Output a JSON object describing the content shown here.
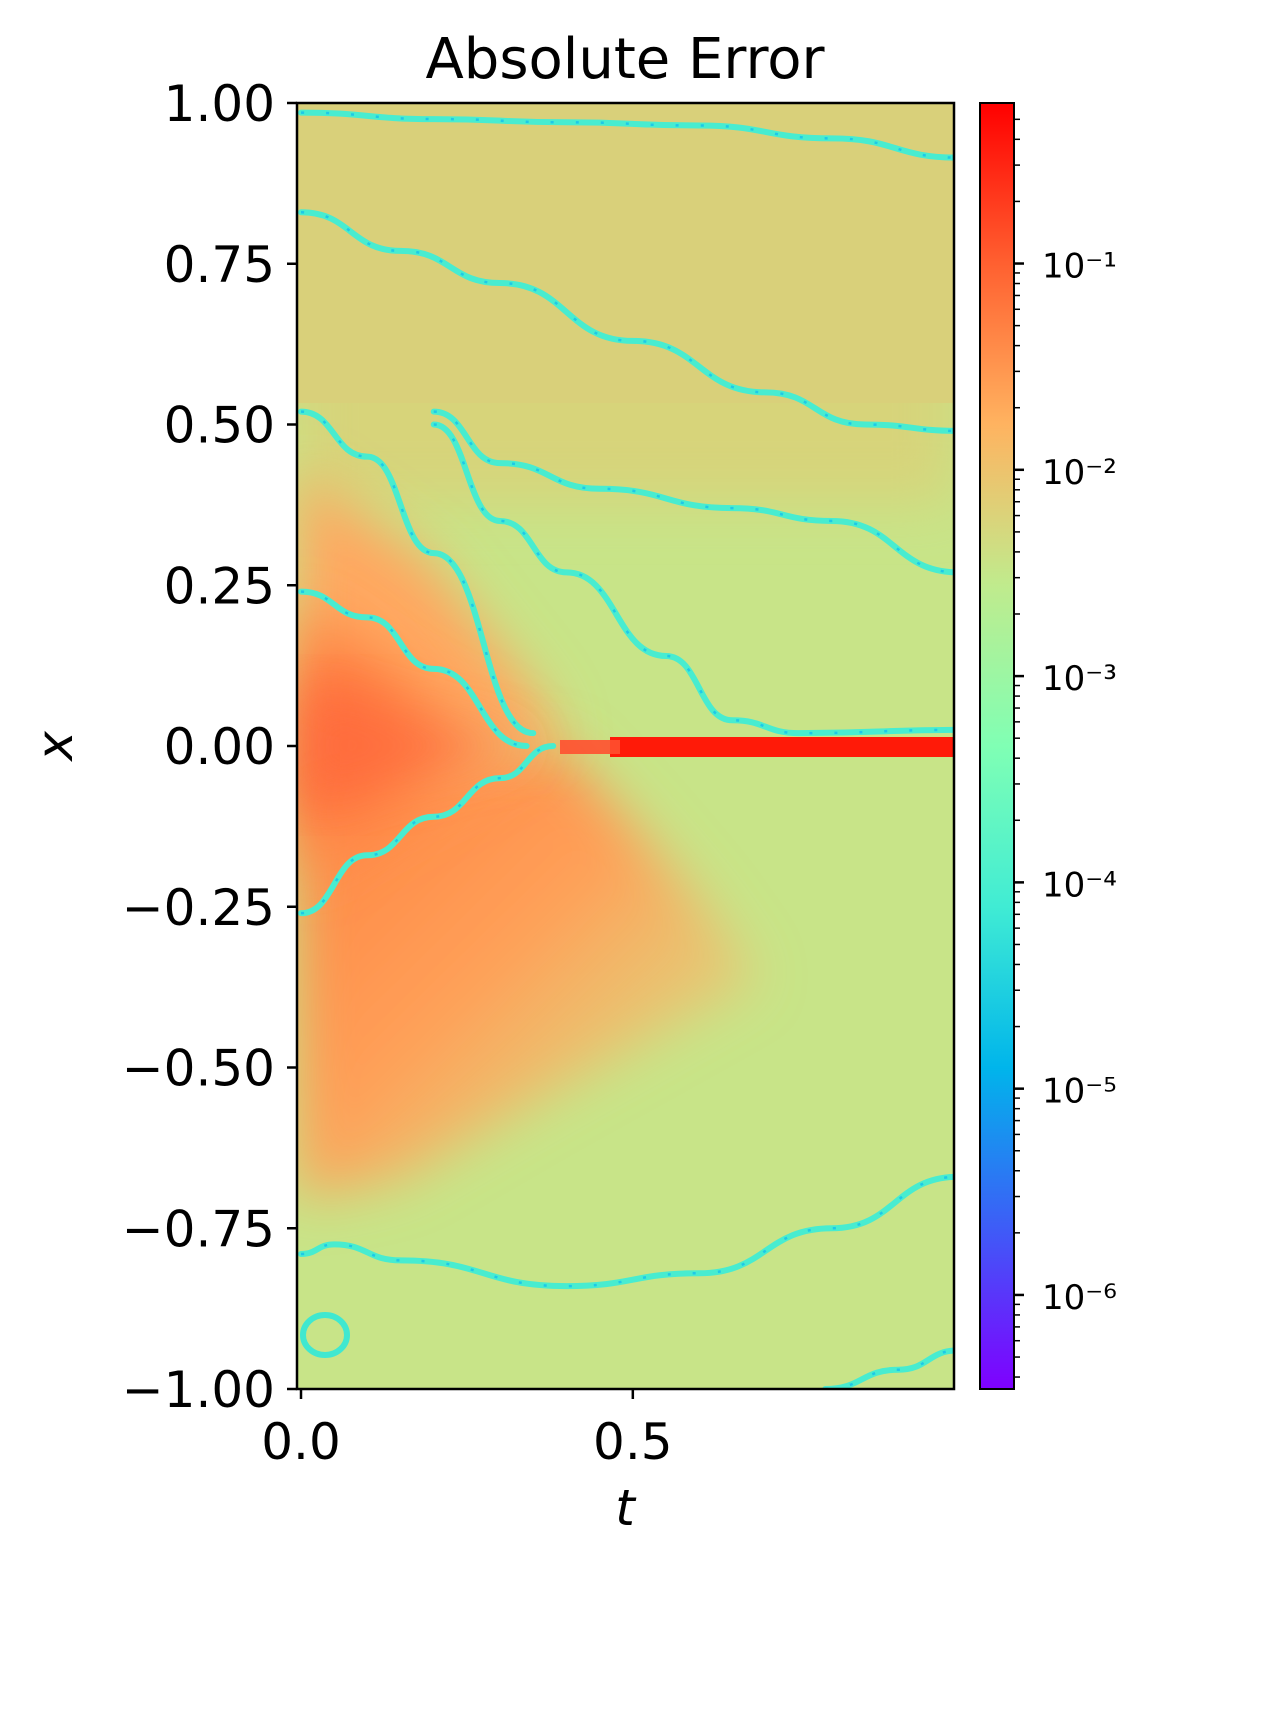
{
  "chart_data": {
    "type": "heatmap",
    "title": "Absolute Error",
    "xlabel": "t",
    "ylabel": "x",
    "xlim": [
      0.0,
      0.99
    ],
    "ylim": [
      -1.0,
      1.0
    ],
    "x_ticks": [
      0.0,
      0.5
    ],
    "x_tick_labels": [
      "0.0",
      "0.5"
    ],
    "y_ticks": [
      1.0,
      0.75,
      0.5,
      0.25,
      0.0,
      -0.25,
      -0.5,
      -0.75,
      -1.0
    ],
    "y_tick_labels": [
      "1.00",
      "0.75",
      "0.50",
      "0.25",
      "0.00",
      "−0.25",
      "−0.50",
      "−0.75",
      "−1.00"
    ],
    "colorbar": {
      "scale": "log",
      "colormap": "rainbow",
      "range": [
        3.5e-07,
        0.6
      ],
      "major_ticks": [
        1e-06,
        1e-05,
        0.0001,
        0.001,
        0.01,
        0.1
      ],
      "tick_labels": [
        "10⁻⁶",
        "10⁻⁵",
        "10⁻⁴",
        "10⁻³",
        "10⁻²",
        "10⁻¹"
      ]
    },
    "features": {
      "max_error_band": {
        "x": 0.0,
        "t_range": [
          0.5,
          0.99
        ],
        "value": 0.5
      },
      "background_level": 0.005,
      "low_error_curves": [
        {
          "t": [
            0.0,
            0.2,
            0.4,
            0.6,
            0.8,
            0.99
          ],
          "x": [
            0.985,
            0.975,
            0.97,
            0.965,
            0.945,
            0.915
          ]
        },
        {
          "t": [
            0.0,
            0.15,
            0.3,
            0.5,
            0.7,
            0.85,
            0.99
          ],
          "x": [
            0.83,
            0.77,
            0.72,
            0.63,
            0.55,
            0.5,
            0.49
          ]
        },
        {
          "t": [
            0.2,
            0.3,
            0.45,
            0.65,
            0.8,
            0.99
          ],
          "x": [
            0.52,
            0.44,
            0.4,
            0.37,
            0.35,
            0.27
          ]
        },
        {
          "t": [
            0.2,
            0.3,
            0.4,
            0.55,
            0.65,
            0.75,
            0.99
          ],
          "x": [
            0.5,
            0.35,
            0.27,
            0.14,
            0.04,
            0.02,
            0.025
          ]
        },
        {
          "t": [
            0.0,
            0.1,
            0.2,
            0.35
          ],
          "x": [
            0.52,
            0.45,
            0.3,
            0.02
          ]
        },
        {
          "t": [
            0.0,
            0.1,
            0.2,
            0.34
          ],
          "x": [
            0.24,
            0.2,
            0.12,
            0.0
          ]
        },
        {
          "t": [
            0.0,
            0.1,
            0.2,
            0.3,
            0.38
          ],
          "x": [
            -0.26,
            -0.17,
            -0.11,
            -0.05,
            0.0
          ]
        },
        {
          "t": [
            0.0,
            0.05,
            0.15,
            0.4,
            0.6,
            0.8,
            0.99
          ],
          "x": [
            -0.79,
            -0.775,
            -0.8,
            -0.84,
            -0.82,
            -0.75,
            -0.67
          ]
        },
        {
          "t": [
            0.79,
            0.9,
            0.99
          ],
          "x": [
            -1.0,
            -0.97,
            -0.94
          ]
        }
      ]
    }
  }
}
